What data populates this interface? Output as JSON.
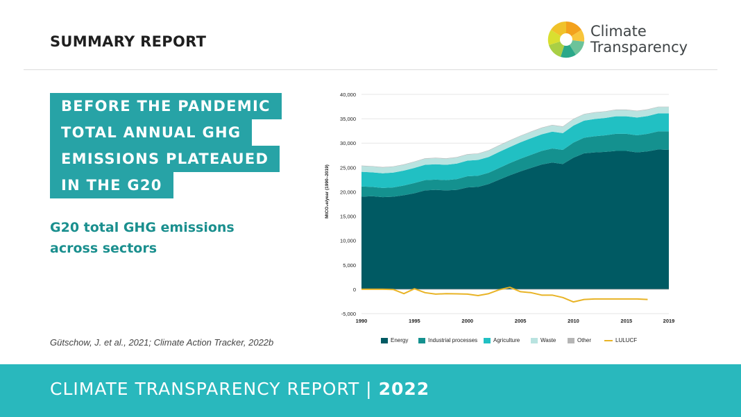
{
  "header": {
    "title": "SUMMARY REPORT"
  },
  "logo": {
    "line1": "Climate",
    "line2": "Transparency"
  },
  "headline": {
    "lines": [
      "BEFORE THE PANDEMIC",
      "TOTAL ANNUAL GHG",
      "EMISSIONS PLATEAUED",
      "IN THE G20"
    ]
  },
  "subhead": "G20 total GHG emissions across sectors",
  "source": "Gütschow, J. et al., 2021; Climate Action Tracker, 2022b",
  "footer": {
    "text": "CLIMATE TRANSPARENCY REPORT |",
    "year": "2022"
  },
  "colors": {
    "energy": "#005a63",
    "industrial": "#14918f",
    "agriculture": "#21c0c3",
    "waste": "#b9e3e0",
    "other": "#b5b5b5",
    "lulucf": "#e8b325",
    "accent": "#27a3a6"
  },
  "chart_data": {
    "type": "area",
    "ylabel": "MtCO₂e/year (1990–2019)",
    "xlabel": "",
    "ylim": [
      -5000,
      40000
    ],
    "yticks": [
      -5000,
      0,
      5000,
      10000,
      15000,
      20000,
      25000,
      30000,
      35000,
      40000
    ],
    "ytick_labels": [
      "-5,000",
      "0",
      "5,000",
      "10,000",
      "15,000",
      "20,000",
      "25,000",
      "30,000",
      "35,000",
      "40,000"
    ],
    "xticks": [
      1990,
      1995,
      2000,
      2005,
      2010,
      2015,
      2019
    ],
    "x": [
      1990,
      1991,
      1992,
      1993,
      1994,
      1995,
      1996,
      1997,
      1998,
      1999,
      2000,
      2001,
      2002,
      2003,
      2004,
      2005,
      2006,
      2007,
      2008,
      2009,
      2010,
      2011,
      2012,
      2013,
      2014,
      2015,
      2016,
      2017,
      2018,
      2019
    ],
    "stacked": true,
    "grid": "horizontal",
    "legend_position": "bottom",
    "series": [
      {
        "name": "Energy",
        "color": "#005a63",
        "values": [
          19000,
          19100,
          18900,
          19000,
          19300,
          19700,
          20300,
          20400,
          20300,
          20400,
          20900,
          21000,
          21600,
          22500,
          23400,
          24200,
          24900,
          25600,
          26000,
          25700,
          27000,
          27900,
          28100,
          28200,
          28400,
          28400,
          28100,
          28300,
          28700,
          28600
        ]
      },
      {
        "name": "Industrial processes",
        "color": "#14918f",
        "values": [
          2100,
          1900,
          1900,
          1900,
          2000,
          2100,
          2100,
          2100,
          2100,
          2200,
          2300,
          2300,
          2300,
          2400,
          2500,
          2600,
          2700,
          2800,
          2900,
          2900,
          3100,
          3200,
          3300,
          3400,
          3500,
          3500,
          3500,
          3600,
          3700,
          3800
        ]
      },
      {
        "name": "Agriculture",
        "color": "#21c0c3",
        "values": [
          3000,
          3000,
          3000,
          3050,
          3050,
          3100,
          3150,
          3150,
          3150,
          3200,
          3200,
          3250,
          3250,
          3300,
          3300,
          3350,
          3400,
          3400,
          3450,
          3450,
          3500,
          3500,
          3550,
          3550,
          3600,
          3600,
          3650,
          3650,
          3700,
          3700
        ]
      },
      {
        "name": "Waste",
        "color": "#b9e3e0",
        "values": [
          1200,
          1200,
          1200,
          1200,
          1200,
          1250,
          1250,
          1250,
          1250,
          1250,
          1250,
          1250,
          1300,
          1300,
          1300,
          1300,
          1300,
          1300,
          1300,
          1300,
          1300,
          1300,
          1300,
          1300,
          1300,
          1300,
          1300,
          1300,
          1300,
          1300
        ]
      },
      {
        "name": "Other",
        "color": "#b5b5b5",
        "values": [
          80,
          80,
          80,
          80,
          80,
          80,
          80,
          80,
          80,
          80,
          80,
          80,
          80,
          80,
          80,
          80,
          80,
          80,
          80,
          80,
          80,
          80,
          80,
          80,
          80,
          80,
          80,
          80,
          80,
          80
        ]
      }
    ],
    "line_series": [
      {
        "name": "LULUCF",
        "color": "#e8b325",
        "x": [
          1990,
          1991,
          1992,
          1993,
          1994,
          1995,
          1996,
          1997,
          1998,
          1999,
          2000,
          2001,
          2002,
          2003,
          2004,
          2005,
          2006,
          2007,
          2008,
          2009,
          2010,
          2011,
          2012,
          2013,
          2014,
          2015,
          2016,
          2017
        ],
        "values": [
          0,
          0,
          0,
          -50,
          -900,
          100,
          -700,
          -1000,
          -900,
          -950,
          -1000,
          -1300,
          -900,
          -100,
          400,
          -500,
          -700,
          -1200,
          -1200,
          -1700,
          -2600,
          -2100,
          -2000,
          -2000,
          -2000,
          -2000,
          -2000,
          -2100
        ]
      }
    ]
  }
}
